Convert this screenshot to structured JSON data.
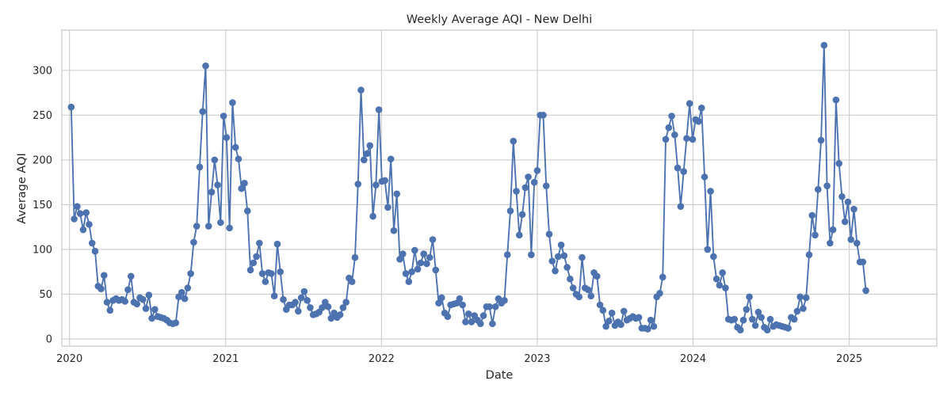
{
  "chart_data": {
    "type": "line",
    "title": "Weekly Average AQI - New Delhi",
    "xlabel": "Date",
    "ylabel": "Average AQI",
    "x_ticks": [
      "2020",
      "2021",
      "2022",
      "2023",
      "2024",
      "2025"
    ],
    "y_ticks": [
      0,
      50,
      100,
      150,
      200,
      250,
      300
    ],
    "xlim": [
      "2019-12-14",
      "2025-07-25"
    ],
    "ylim": [
      -8,
      345
    ],
    "grid": true,
    "marker": "circle",
    "color": "#4c72b0",
    "series": [
      {
        "points": [
          [
            "2020-01-05",
            259
          ],
          [
            "2020-01-12",
            134
          ],
          [
            "2020-01-19",
            148
          ],
          [
            "2020-01-26",
            140
          ],
          [
            "2020-02-02",
            122
          ],
          [
            "2020-02-09",
            141
          ],
          [
            "2020-02-16",
            128
          ],
          [
            "2020-02-23",
            107
          ],
          [
            "2020-03-01",
            98
          ],
          [
            "2020-03-08",
            59
          ],
          [
            "2020-03-15",
            56
          ],
          [
            "2020-03-22",
            71
          ],
          [
            "2020-03-29",
            41
          ],
          [
            "2020-04-05",
            32
          ],
          [
            "2020-04-12",
            43
          ],
          [
            "2020-04-19",
            45
          ],
          [
            "2020-04-26",
            43
          ],
          [
            "2020-05-03",
            44
          ],
          [
            "2020-05-10",
            42
          ],
          [
            "2020-05-17",
            55
          ],
          [
            "2020-05-24",
            70
          ],
          [
            "2020-05-31",
            41
          ],
          [
            "2020-06-07",
            39
          ],
          [
            "2020-06-14",
            46
          ],
          [
            "2020-06-21",
            44
          ],
          [
            "2020-06-28",
            34
          ],
          [
            "2020-07-05",
            49
          ],
          [
            "2020-07-12",
            23
          ],
          [
            "2020-07-19",
            33
          ],
          [
            "2020-07-26",
            25
          ],
          [
            "2020-08-02",
            24
          ],
          [
            "2020-08-09",
            23
          ],
          [
            "2020-08-16",
            21
          ],
          [
            "2020-08-23",
            18
          ],
          [
            "2020-08-30",
            17
          ],
          [
            "2020-09-06",
            18
          ],
          [
            "2020-09-13",
            47
          ],
          [
            "2020-09-20",
            52
          ],
          [
            "2020-09-27",
            45
          ],
          [
            "2020-10-04",
            57
          ],
          [
            "2020-10-11",
            73
          ],
          [
            "2020-10-18",
            108
          ],
          [
            "2020-10-25",
            126
          ],
          [
            "2020-11-01",
            192
          ],
          [
            "2020-11-08",
            254
          ],
          [
            "2020-11-15",
            305
          ],
          [
            "2020-11-22",
            126
          ],
          [
            "2020-11-29",
            164
          ],
          [
            "2020-12-06",
            200
          ],
          [
            "2020-12-13",
            172
          ],
          [
            "2020-12-20",
            130
          ],
          [
            "2020-12-27",
            249
          ],
          [
            "2021-01-03",
            225
          ],
          [
            "2021-01-10",
            124
          ],
          [
            "2021-01-17",
            264
          ],
          [
            "2021-01-24",
            214
          ],
          [
            "2021-01-31",
            201
          ],
          [
            "2021-02-07",
            168
          ],
          [
            "2021-02-14",
            174
          ],
          [
            "2021-02-21",
            143
          ],
          [
            "2021-02-28",
            77
          ],
          [
            "2021-03-07",
            85
          ],
          [
            "2021-03-14",
            92
          ],
          [
            "2021-03-21",
            107
          ],
          [
            "2021-03-28",
            73
          ],
          [
            "2021-04-04",
            64
          ],
          [
            "2021-04-11",
            74
          ],
          [
            "2021-04-18",
            73
          ],
          [
            "2021-04-25",
            48
          ],
          [
            "2021-05-02",
            106
          ],
          [
            "2021-05-09",
            75
          ],
          [
            "2021-05-16",
            44
          ],
          [
            "2021-05-23",
            33
          ],
          [
            "2021-05-30",
            38
          ],
          [
            "2021-06-06",
            38
          ],
          [
            "2021-06-13",
            41
          ],
          [
            "2021-06-20",
            31
          ],
          [
            "2021-06-27",
            46
          ],
          [
            "2021-07-04",
            53
          ],
          [
            "2021-07-11",
            43
          ],
          [
            "2021-07-18",
            35
          ],
          [
            "2021-07-25",
            27
          ],
          [
            "2021-08-01",
            28
          ],
          [
            "2021-08-08",
            30
          ],
          [
            "2021-08-15",
            35
          ],
          [
            "2021-08-22",
            41
          ],
          [
            "2021-08-29",
            36
          ],
          [
            "2021-09-05",
            23
          ],
          [
            "2021-09-12",
            29
          ],
          [
            "2021-09-19",
            24
          ],
          [
            "2021-09-26",
            27
          ],
          [
            "2021-10-03",
            35
          ],
          [
            "2021-10-10",
            41
          ],
          [
            "2021-10-17",
            68
          ],
          [
            "2021-10-24",
            64
          ],
          [
            "2021-10-31",
            91
          ],
          [
            "2021-11-07",
            173
          ],
          [
            "2021-11-14",
            278
          ],
          [
            "2021-11-21",
            200
          ],
          [
            "2021-11-28",
            207
          ],
          [
            "2021-12-05",
            216
          ],
          [
            "2021-12-12",
            137
          ],
          [
            "2021-12-19",
            172
          ],
          [
            "2021-12-26",
            256
          ],
          [
            "2022-01-02",
            176
          ],
          [
            "2022-01-09",
            177
          ],
          [
            "2022-01-16",
            147
          ],
          [
            "2022-01-23",
            201
          ],
          [
            "2022-01-30",
            121
          ],
          [
            "2022-02-06",
            162
          ],
          [
            "2022-02-13",
            89
          ],
          [
            "2022-02-20",
            95
          ],
          [
            "2022-02-27",
            73
          ],
          [
            "2022-03-06",
            64
          ],
          [
            "2022-03-13",
            75
          ],
          [
            "2022-03-20",
            99
          ],
          [
            "2022-03-27",
            78
          ],
          [
            "2022-04-03",
            85
          ],
          [
            "2022-04-10",
            95
          ],
          [
            "2022-04-17",
            84
          ],
          [
            "2022-04-24",
            91
          ],
          [
            "2022-05-01",
            111
          ],
          [
            "2022-05-08",
            77
          ],
          [
            "2022-05-15",
            40
          ],
          [
            "2022-05-22",
            46
          ],
          [
            "2022-05-29",
            29
          ],
          [
            "2022-06-05",
            25
          ],
          [
            "2022-06-12",
            38
          ],
          [
            "2022-06-19",
            39
          ],
          [
            "2022-06-26",
            40
          ],
          [
            "2022-07-03",
            45
          ],
          [
            "2022-07-10",
            38
          ],
          [
            "2022-07-17",
            19
          ],
          [
            "2022-07-24",
            28
          ],
          [
            "2022-07-31",
            19
          ],
          [
            "2022-08-07",
            26
          ],
          [
            "2022-08-14",
            21
          ],
          [
            "2022-08-21",
            17
          ],
          [
            "2022-08-28",
            26
          ],
          [
            "2022-09-04",
            36
          ],
          [
            "2022-09-11",
            36
          ],
          [
            "2022-09-18",
            17
          ],
          [
            "2022-09-25",
            36
          ],
          [
            "2022-10-02",
            45
          ],
          [
            "2022-10-09",
            40
          ],
          [
            "2022-10-16",
            43
          ],
          [
            "2022-10-23",
            94
          ],
          [
            "2022-10-30",
            143
          ],
          [
            "2022-11-06",
            221
          ],
          [
            "2022-11-13",
            165
          ],
          [
            "2022-11-20",
            116
          ],
          [
            "2022-11-27",
            139
          ],
          [
            "2022-12-04",
            169
          ],
          [
            "2022-12-11",
            181
          ],
          [
            "2022-12-18",
            94
          ],
          [
            "2022-12-25",
            175
          ],
          [
            "2023-01-01",
            188
          ],
          [
            "2023-01-08",
            250
          ],
          [
            "2023-01-15",
            250
          ],
          [
            "2023-01-22",
            171
          ],
          [
            "2023-01-29",
            117
          ],
          [
            "2023-02-05",
            87
          ],
          [
            "2023-02-12",
            76
          ],
          [
            "2023-02-19",
            92
          ],
          [
            "2023-02-26",
            105
          ],
          [
            "2023-03-05",
            93
          ],
          [
            "2023-03-12",
            80
          ],
          [
            "2023-03-19",
            67
          ],
          [
            "2023-03-26",
            57
          ],
          [
            "2023-04-02",
            50
          ],
          [
            "2023-04-09",
            47
          ],
          [
            "2023-04-16",
            91
          ],
          [
            "2023-04-23",
            57
          ],
          [
            "2023-04-30",
            55
          ],
          [
            "2023-05-07",
            48
          ],
          [
            "2023-05-14",
            74
          ],
          [
            "2023-05-21",
            70
          ],
          [
            "2023-05-28",
            38
          ],
          [
            "2023-06-04",
            32
          ],
          [
            "2023-06-11",
            14
          ],
          [
            "2023-06-18",
            20
          ],
          [
            "2023-06-25",
            29
          ],
          [
            "2023-07-02",
            15
          ],
          [
            "2023-07-09",
            19
          ],
          [
            "2023-07-16",
            16
          ],
          [
            "2023-07-23",
            31
          ],
          [
            "2023-07-30",
            21
          ],
          [
            "2023-08-06",
            23
          ],
          [
            "2023-08-13",
            25
          ],
          [
            "2023-08-20",
            23
          ],
          [
            "2023-08-27",
            24
          ],
          [
            "2023-09-03",
            12
          ],
          [
            "2023-09-10",
            12
          ],
          [
            "2023-09-17",
            11
          ],
          [
            "2023-09-24",
            21
          ],
          [
            "2023-10-01",
            14
          ],
          [
            "2023-10-08",
            47
          ],
          [
            "2023-10-15",
            51
          ],
          [
            "2023-10-22",
            69
          ],
          [
            "2023-10-29",
            223
          ],
          [
            "2023-11-05",
            236
          ],
          [
            "2023-11-12",
            249
          ],
          [
            "2023-11-19",
            228
          ],
          [
            "2023-11-26",
            191
          ],
          [
            "2023-12-03",
            148
          ],
          [
            "2023-12-10",
            187
          ],
          [
            "2023-12-17",
            224
          ],
          [
            "2023-12-24",
            263
          ],
          [
            "2023-12-31",
            223
          ],
          [
            "2024-01-07",
            245
          ],
          [
            "2024-01-14",
            243
          ],
          [
            "2024-01-21",
            258
          ],
          [
            "2024-01-28",
            181
          ],
          [
            "2024-02-04",
            100
          ],
          [
            "2024-02-11",
            165
          ],
          [
            "2024-02-18",
            92
          ],
          [
            "2024-02-25",
            67
          ],
          [
            "2024-03-03",
            60
          ],
          [
            "2024-03-10",
            74
          ],
          [
            "2024-03-17",
            57
          ],
          [
            "2024-03-24",
            22
          ],
          [
            "2024-03-31",
            21
          ],
          [
            "2024-04-07",
            22
          ],
          [
            "2024-04-14",
            13
          ],
          [
            "2024-04-21",
            10
          ],
          [
            "2024-04-28",
            21
          ],
          [
            "2024-05-05",
            33
          ],
          [
            "2024-05-12",
            47
          ],
          [
            "2024-05-19",
            22
          ],
          [
            "2024-05-26",
            15
          ],
          [
            "2024-06-02",
            30
          ],
          [
            "2024-06-09",
            24
          ],
          [
            "2024-06-16",
            13
          ],
          [
            "2024-06-23",
            10
          ],
          [
            "2024-06-30",
            22
          ],
          [
            "2024-07-07",
            14
          ],
          [
            "2024-07-14",
            16
          ],
          [
            "2024-07-21",
            15
          ],
          [
            "2024-07-28",
            14
          ],
          [
            "2024-08-04",
            13
          ],
          [
            "2024-08-11",
            12
          ],
          [
            "2024-08-18",
            24
          ],
          [
            "2024-08-25",
            22
          ],
          [
            "2024-09-01",
            31
          ],
          [
            "2024-09-08",
            47
          ],
          [
            "2024-09-15",
            34
          ],
          [
            "2024-09-22",
            46
          ],
          [
            "2024-09-29",
            94
          ],
          [
            "2024-10-06",
            138
          ],
          [
            "2024-10-13",
            116
          ],
          [
            "2024-10-20",
            167
          ],
          [
            "2024-10-27",
            222
          ],
          [
            "2024-11-03",
            328
          ],
          [
            "2024-11-10",
            171
          ],
          [
            "2024-11-17",
            107
          ],
          [
            "2024-11-24",
            122
          ],
          [
            "2024-12-01",
            267
          ],
          [
            "2024-12-08",
            196
          ],
          [
            "2024-12-15",
            159
          ],
          [
            "2024-12-22",
            131
          ],
          [
            "2024-12-29",
            153
          ],
          [
            "2025-01-05",
            111
          ],
          [
            "2025-01-12",
            145
          ],
          [
            "2025-01-19",
            107
          ],
          [
            "2025-01-26",
            86
          ],
          [
            "2025-02-02",
            86
          ],
          [
            "2025-02-09",
            54
          ]
        ]
      }
    ]
  }
}
